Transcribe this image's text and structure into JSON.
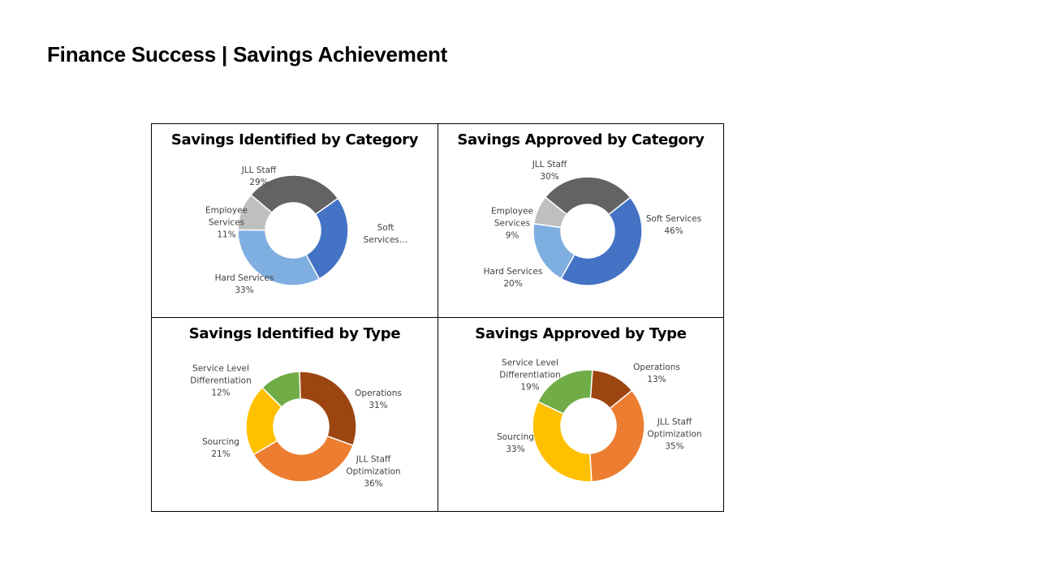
{
  "page": {
    "title": "Finance Success | Savings Achievement"
  },
  "chart_data": [
    {
      "type": "pie",
      "title": "Savings Identified by Category",
      "categories": [
        "Soft Services",
        "Hard Services",
        "Employee Services",
        "JLL Staff"
      ],
      "values": [
        27,
        33,
        11,
        29
      ],
      "category_labels": [
        "Soft Services…",
        "Hard Services",
        "Employee Services",
        "JLL Staff"
      ],
      "value_labels": [
        "",
        "33%",
        "11%",
        "29%"
      ],
      "colors": [
        "#4472C4",
        "#7FAEE0",
        "#BFBFBF",
        "#636363"
      ]
    },
    {
      "type": "pie",
      "title": "Savings Approved by Category",
      "categories": [
        "Soft Services",
        "Hard Services",
        "Employee Services",
        "JLL Staff"
      ],
      "values": [
        46,
        20,
        9,
        30
      ],
      "category_labels": [
        "Soft Services",
        "Hard Services",
        "Employee Services",
        "JLL Staff"
      ],
      "value_labels": [
        "46%",
        "20%",
        "9%",
        "30%"
      ],
      "colors": [
        "#4472C4",
        "#7FAEE0",
        "#BFBFBF",
        "#636363"
      ]
    },
    {
      "type": "pie",
      "title": "Savings Identified by Type",
      "categories": [
        "Operations",
        "JLL Staff Optimization",
        "Sourcing",
        "Service Level Differentiation"
      ],
      "values": [
        31,
        36,
        21,
        12
      ],
      "category_labels": [
        "Operations",
        "JLL Staff Optimization",
        "Sourcing",
        "Service Level Differentiation"
      ],
      "value_labels": [
        "31%",
        "36%",
        "21%",
        "12%"
      ],
      "colors": [
        "#9C4510",
        "#ED7D31",
        "#FFC000",
        "#70AD47"
      ]
    },
    {
      "type": "pie",
      "title": "Savings Approved by Type",
      "categories": [
        "Operations",
        "JLL Staff Optimization",
        "Sourcing",
        "Service Level Differentiation"
      ],
      "values": [
        13,
        35,
        33,
        19
      ],
      "category_labels": [
        "Operations",
        "JLL Staff Optimization",
        "Sourcing",
        "Service Level Differentiation"
      ],
      "value_labels": [
        "13%",
        "35%",
        "33%",
        "19%"
      ],
      "colors": [
        "#9C4510",
        "#ED7D31",
        "#FFC000",
        "#70AD47"
      ]
    }
  ]
}
